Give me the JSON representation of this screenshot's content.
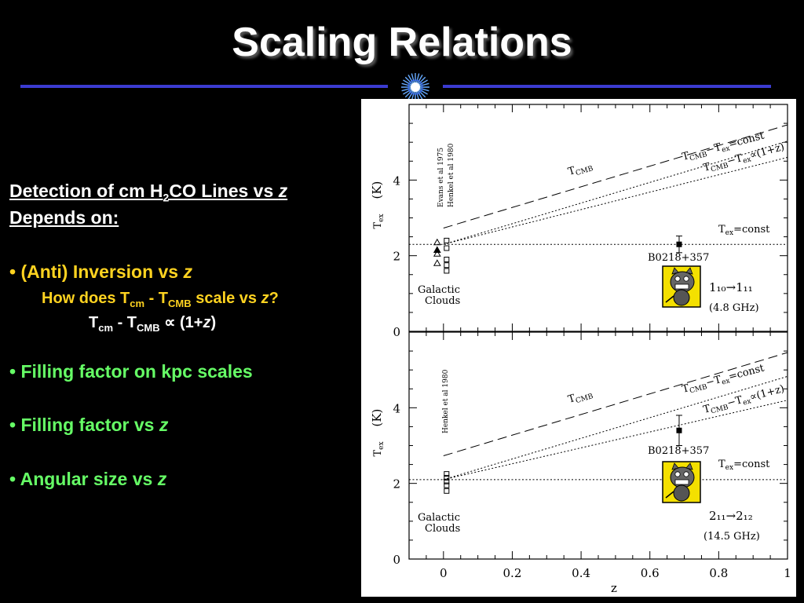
{
  "slide": {
    "title": "Scaling Relations"
  },
  "text": {
    "heading1_a": "Detection of cm H",
    "heading1_sub": "2",
    "heading1_b": "CO Lines vs ",
    "heading1_z": "z",
    "heading2": "Depends on:",
    "b1_a": "• (Anti) Inversion vs ",
    "b1_z": "z",
    "q_a": "How does T",
    "q_sub1": "cm",
    "q_b": " - T",
    "q_sub2": "CMB",
    "q_c": " scale vs ",
    "q_z": "z",
    "q_d": "?",
    "f_a": "T",
    "f_sub1": "cm",
    "f_b": " - T",
    "f_sub2": "CMB",
    "f_c": " ∝ (1+",
    "f_z": "z",
    "f_d": ")",
    "b2": "• Filling factor on kpc scales",
    "b3_a": "• Filling factor vs ",
    "b3_z": "z",
    "b4_a": "• Angular size vs ",
    "b4_z": "z"
  },
  "colors": {
    "heading": "#ffffff",
    "question": "#ffd320",
    "bullet_green": "#66ff66",
    "rule": "#3b3bd0"
  },
  "chart_data": [
    {
      "type": "line",
      "panel": "top",
      "transition": "1₁₀→1₁₁",
      "frequency": "(4.8 GHz)",
      "xlim": [
        -0.1,
        1.0
      ],
      "ylim": [
        0,
        6
      ],
      "x_ticks": [
        0,
        0.2,
        0.4,
        0.6,
        0.8,
        1
      ],
      "x_tick_labels": [
        "0",
        "0.2",
        "0.4",
        "0.6",
        "0.8",
        "1"
      ],
      "y_ticks": [
        0,
        2,
        4
      ],
      "ylabel": "T_ex (K)",
      "ref_label_1": "Evans et al 1975",
      "ref_label_2": "Henkel et al 1980",
      "galactic_label_1": "Galactic",
      "galactic_label_2": "Clouds",
      "source_label": "B0218+357",
      "series": [
        {
          "name": "T_CMB",
          "style": "dashed",
          "x": [
            0,
            1
          ],
          "y": [
            2.73,
            5.46
          ]
        },
        {
          "name": "T_CMB−T_ex=const",
          "style": "dotted",
          "x": [
            0,
            1
          ],
          "y": [
            2.3,
            5.03
          ]
        },
        {
          "name": "T_CMB−T_ex∝(1+z)",
          "style": "dotted",
          "x": [
            0,
            1
          ],
          "y": [
            2.3,
            4.6
          ]
        },
        {
          "name": "T_ex=const",
          "style": "dotted",
          "x": [
            -0.1,
            1
          ],
          "y": [
            2.3,
            2.3
          ]
        }
      ],
      "galactic_points": {
        "x": 0,
        "y": [
          2.35,
          2.15,
          2.05,
          1.8,
          2.4,
          2.2,
          1.9,
          1.75,
          1.6
        ]
      },
      "source_point": {
        "x": 0.685,
        "y": 2.3,
        "yerr": 0.22
      }
    },
    {
      "type": "line",
      "panel": "bottom",
      "transition": "2₁₁→2₁₂",
      "frequency": "(14.5 GHz)",
      "xlim": [
        -0.1,
        1.0
      ],
      "ylim": [
        0,
        6
      ],
      "x_ticks": [
        0,
        0.2,
        0.4,
        0.6,
        0.8,
        1
      ],
      "x_tick_labels": [
        "0",
        "0.2",
        "0.4",
        "0.6",
        "0.8",
        "1"
      ],
      "y_ticks": [
        0,
        2,
        4
      ],
      "xlabel": "z",
      "ylabel": "T_ex (K)",
      "ref_label_1": "Henkel et al 1980",
      "galactic_label_1": "Galactic",
      "galactic_label_2": "Clouds",
      "source_label": "B0218+357",
      "series": [
        {
          "name": "T_CMB",
          "style": "dashed",
          "x": [
            0,
            1
          ],
          "y": [
            2.73,
            5.46
          ]
        },
        {
          "name": "T_CMB−T_ex=const",
          "style": "dotted",
          "x": [
            0,
            1
          ],
          "y": [
            2.1,
            4.83
          ]
        },
        {
          "name": "T_CMB−T_ex∝(1+z)",
          "style": "dotted",
          "x": [
            0,
            1
          ],
          "y": [
            2.1,
            4.2
          ]
        },
        {
          "name": "T_ex=const",
          "style": "dotted",
          "x": [
            -0.1,
            1
          ],
          "y": [
            2.1,
            2.1
          ]
        }
      ],
      "galactic_points": {
        "x": 0,
        "y": [
          2.25,
          2.15,
          2.05,
          1.95,
          1.8
        ]
      },
      "source_point": {
        "x": 0.685,
        "y": 3.4,
        "yerr": 0.4
      }
    }
  ]
}
